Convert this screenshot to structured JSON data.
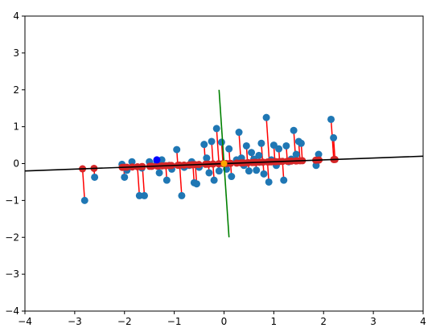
{
  "chart_data": {
    "type": "scatter",
    "title": "",
    "xlabel": "",
    "ylabel": "",
    "xlim": [
      -4,
      4
    ],
    "ylim": [
      -4,
      4
    ],
    "grid": false,
    "legend": "none",
    "x_ticks": [
      {
        "value": -4,
        "label": "−4"
      },
      {
        "value": -3,
        "label": "−3"
      },
      {
        "value": -2,
        "label": "−2"
      },
      {
        "value": -1,
        "label": "−1"
      },
      {
        "value": 0,
        "label": "0"
      },
      {
        "value": 1,
        "label": "1"
      },
      {
        "value": 2,
        "label": "2"
      },
      {
        "value": 3,
        "label": "3"
      },
      {
        "value": 4,
        "label": "4"
      }
    ],
    "y_ticks": [
      {
        "value": -4,
        "label": "−4"
      },
      {
        "value": -3,
        "label": "−3"
      },
      {
        "value": -2,
        "label": "−2"
      },
      {
        "value": -1,
        "label": "−1"
      },
      {
        "value": 0,
        "label": "0"
      },
      {
        "value": 1,
        "label": "1"
      },
      {
        "value": 2,
        "label": "2"
      },
      {
        "value": 3,
        "label": "3"
      },
      {
        "value": 4,
        "label": "4"
      }
    ],
    "colors": {
      "data_points": "#1f77b4",
      "projected_points": "#d62728",
      "projection_lines": "#ff0000",
      "principal_axis": "#000000",
      "orthogonal_axis": "#008000",
      "mean_point": "#ffa500",
      "highlight_point": "#0000ff"
    },
    "principal_axis": {
      "from": [
        -4,
        -0.2
      ],
      "to": [
        4,
        0.2
      ]
    },
    "orthogonal_axis": {
      "from": [
        -0.1,
        2.0
      ],
      "to": [
        0.1,
        -2.0
      ]
    },
    "mean_point": [
      0.0,
      0.0
    ],
    "highlight_point": [
      -1.35,
      0.1
    ],
    "points": [
      [
        -2.8,
        -1.0
      ],
      [
        -2.6,
        -0.37
      ],
      [
        -2.05,
        -0.02
      ],
      [
        -2.0,
        -0.37
      ],
      [
        -1.95,
        -0.18
      ],
      [
        -1.7,
        -0.87
      ],
      [
        -1.6,
        -0.87
      ],
      [
        -1.5,
        0.05
      ],
      [
        -1.45,
        -0.07
      ],
      [
        -1.3,
        -0.25
      ],
      [
        -1.25,
        0.1
      ],
      [
        -1.15,
        -0.45
      ],
      [
        -1.05,
        -0.15
      ],
      [
        -0.95,
        0.38
      ],
      [
        -0.9,
        -0.05
      ],
      [
        -0.85,
        -0.87
      ],
      [
        -0.8,
        -0.1
      ],
      [
        -0.7,
        -0.05
      ],
      [
        -0.6,
        -0.52
      ],
      [
        -0.55,
        -0.55
      ],
      [
        -0.5,
        -0.1
      ],
      [
        -0.4,
        0.52
      ],
      [
        -0.35,
        0.15
      ],
      [
        -0.25,
        0.6
      ],
      [
        -0.2,
        -0.45
      ],
      [
        -0.15,
        0.95
      ],
      [
        -0.1,
        -0.2
      ],
      [
        -0.05,
        0.58
      ],
      [
        0.05,
        -0.15
      ],
      [
        0.1,
        0.4
      ],
      [
        0.3,
        0.85
      ],
      [
        0.35,
        0.15
      ],
      [
        0.4,
        -0.05
      ],
      [
        0.45,
        0.48
      ],
      [
        0.5,
        -0.2
      ],
      [
        0.55,
        0.3
      ],
      [
        0.6,
        0.1
      ],
      [
        0.65,
        -0.18
      ],
      [
        0.7,
        0.22
      ],
      [
        0.75,
        0.55
      ],
      [
        0.8,
        -0.28
      ],
      [
        0.85,
        1.25
      ],
      [
        0.9,
        -0.5
      ],
      [
        1.0,
        0.5
      ],
      [
        1.05,
        -0.05
      ],
      [
        1.1,
        0.4
      ],
      [
        1.2,
        -0.45
      ],
      [
        1.25,
        0.48
      ],
      [
        1.35,
        0.12
      ],
      [
        1.4,
        0.9
      ],
      [
        1.45,
        0.25
      ],
      [
        1.5,
        0.6
      ],
      [
        1.55,
        0.55
      ],
      [
        1.85,
        -0.05
      ],
      [
        1.9,
        0.25
      ],
      [
        2.15,
        1.2
      ],
      [
        2.2,
        0.7
      ],
      [
        -1.85,
        0.05
      ],
      [
        -1.65,
        -0.12
      ],
      [
        -1.35,
        0.05
      ],
      [
        -1.1,
        -0.05
      ],
      [
        -0.65,
        0.05
      ],
      [
        0.25,
        0.1
      ],
      [
        0.95,
        0.1
      ],
      [
        1.3,
        0.05
      ],
      [
        -0.3,
        -0.25
      ],
      [
        0.15,
        -0.35
      ],
      [
        0.6,
        0.12
      ]
    ]
  }
}
